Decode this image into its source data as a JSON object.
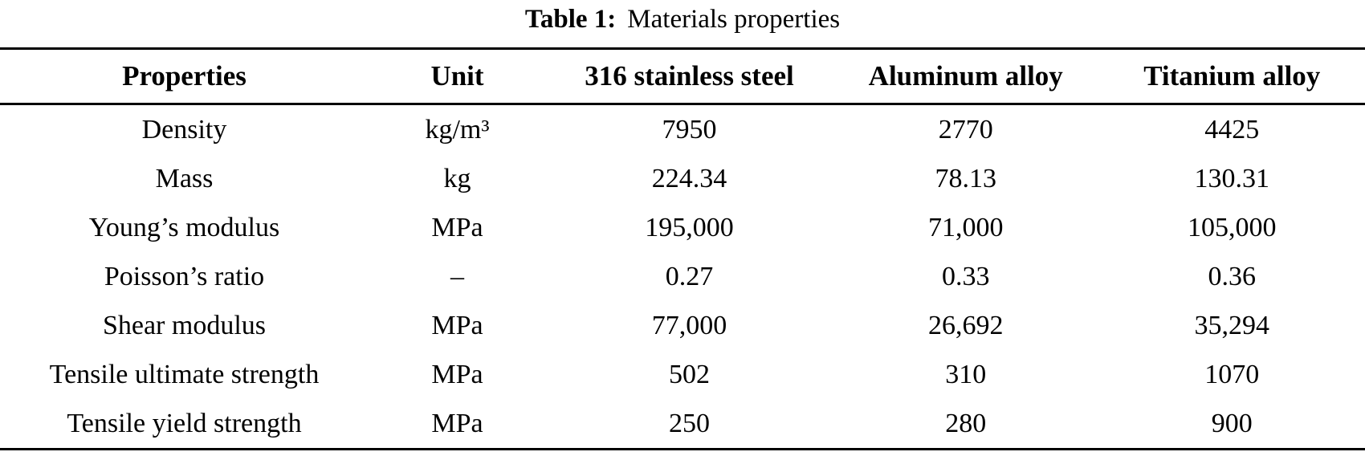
{
  "caption": {
    "label": "Table 1:",
    "text": "Materials properties"
  },
  "table": {
    "headers": [
      "Properties",
      "Unit",
      "316 stainless steel",
      "Aluminum alloy",
      "Titanium alloy"
    ],
    "rows": [
      [
        "Density",
        "kg/m³",
        "7950",
        "2770",
        "4425"
      ],
      [
        "Mass",
        "kg",
        "224.34",
        "78.13",
        "130.31"
      ],
      [
        "Young’s modulus",
        "MPa",
        "195,000",
        "71,000",
        "105,000"
      ],
      [
        "Poisson’s ratio",
        "–",
        "0.27",
        "0.33",
        "0.36"
      ],
      [
        "Shear modulus",
        "MPa",
        "77,000",
        "26,692",
        "35,294"
      ],
      [
        "Tensile ultimate strength",
        "MPa",
        "502",
        "310",
        "1070"
      ],
      [
        "Tensile yield strength",
        "MPa",
        "250",
        "280",
        "900"
      ]
    ]
  }
}
